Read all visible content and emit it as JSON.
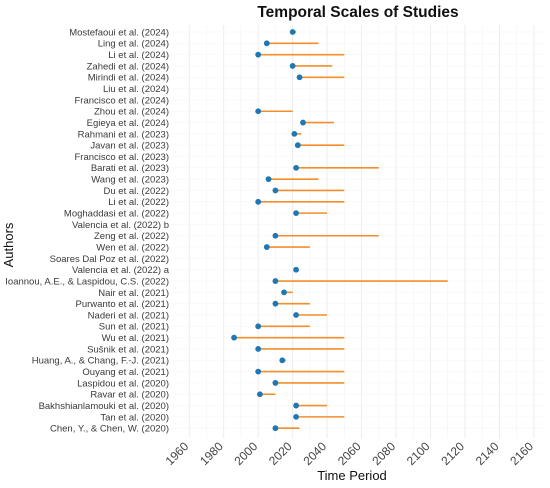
{
  "chart_data": {
    "type": "dumbbell",
    "title": "Temporal Scales of Studies",
    "xlabel": "Time Period",
    "ylabel": "Authors",
    "xlim": [
      1950,
      2167
    ],
    "x_ticks": [
      1960,
      1980,
      2000,
      2020,
      2040,
      2060,
      2080,
      2100,
      2120,
      2140,
      2160
    ],
    "grid": true,
    "colors": {
      "segment": "#f28e2b",
      "point": "#1f77b4",
      "grid": "#ebebeb"
    },
    "studies": [
      {
        "author": "Mostefaoui et al. (2024)",
        "start": 2020,
        "end": 2022
      },
      {
        "author": "Ling et al. (2024)",
        "start": 2005,
        "end": 2035
      },
      {
        "author": "Li et al. (2024)",
        "start": 2000,
        "end": 2050
      },
      {
        "author": "Zahedi et al. (2024)",
        "start": 2020,
        "end": 2043
      },
      {
        "author": "Mirindi et al. (2024)",
        "start": 2024,
        "end": 2050
      },
      {
        "author": "Liu et al. (2024)",
        "start": null,
        "end": null
      },
      {
        "author": "Francisco et al. (2024)",
        "start": null,
        "end": null
      },
      {
        "author": "Zhou et al. (2024)",
        "start": 2000,
        "end": 2020
      },
      {
        "author": "Egieya et al. (2024)",
        "start": 2026,
        "end": 2044
      },
      {
        "author": "Rahmani et al. (2023)",
        "start": 2021,
        "end": 2025
      },
      {
        "author": "Javan et al. (2023)",
        "start": 2023,
        "end": 2050
      },
      {
        "author": "Francisco et al. (2023)",
        "start": null,
        "end": null
      },
      {
        "author": "Barati et al. (2023)",
        "start": 2022,
        "end": 2070
      },
      {
        "author": "Wang  et al. (2023)",
        "start": 2006,
        "end": 2035
      },
      {
        "author": "Du et al. (2022)",
        "start": 2010,
        "end": 2050
      },
      {
        "author": "Li et al. (2022)",
        "start": 2000,
        "end": 2050
      },
      {
        "author": "Moghaddasi et al. (2022)",
        "start": 2022,
        "end": 2040
      },
      {
        "author": "Valencia et al. (2022) b",
        "start": null,
        "end": null
      },
      {
        "author": "Zeng et al. (2022)",
        "start": 2010,
        "end": 2070
      },
      {
        "author": "Wen et al. (2022)",
        "start": 2005,
        "end": 2030
      },
      {
        "author": "Soares Dal Poz et al. (2022)",
        "start": null,
        "end": null
      },
      {
        "author": "Valencia et al. (2022) a",
        "start": 2022,
        "end": 2022
      },
      {
        "author": "Ioannou, A.E., & Laspidou, C.S. (2022)",
        "start": 2010,
        "end": 2110
      },
      {
        "author": "Nair et al. (2021)",
        "start": 2015,
        "end": 2020
      },
      {
        "author": "Purwanto et al. (2021)",
        "start": 2010,
        "end": 2030
      },
      {
        "author": "Naderi et al. (2021)",
        "start": 2022,
        "end": 2040
      },
      {
        "author": "Sun et al. (2021)",
        "start": 2000,
        "end": 2030
      },
      {
        "author": "Wu et al. (2021)",
        "start": 1986,
        "end": 2050
      },
      {
        "author": "Sušnik et al. (2021)",
        "start": 2000,
        "end": 2050
      },
      {
        "author": "Huang, A., & Chang, F.-J. (2021)",
        "start": 2014,
        "end": 2016
      },
      {
        "author": "Ouyang et al. (2021)",
        "start": 2000,
        "end": 2050
      },
      {
        "author": "Laspidou et al. (2020)",
        "start": 2010,
        "end": 2050
      },
      {
        "author": "Ravar et al. (2020)",
        "start": 2001,
        "end": 2010
      },
      {
        "author": "Bakhshianlamouki et al. (2020)",
        "start": 2022,
        "end": 2040
      },
      {
        "author": "Tan et al. (2020)",
        "start": 2022,
        "end": 2050
      },
      {
        "author": "Chen, Y., & Chen, W. (2020)",
        "start": 2010,
        "end": 2024
      }
    ]
  }
}
